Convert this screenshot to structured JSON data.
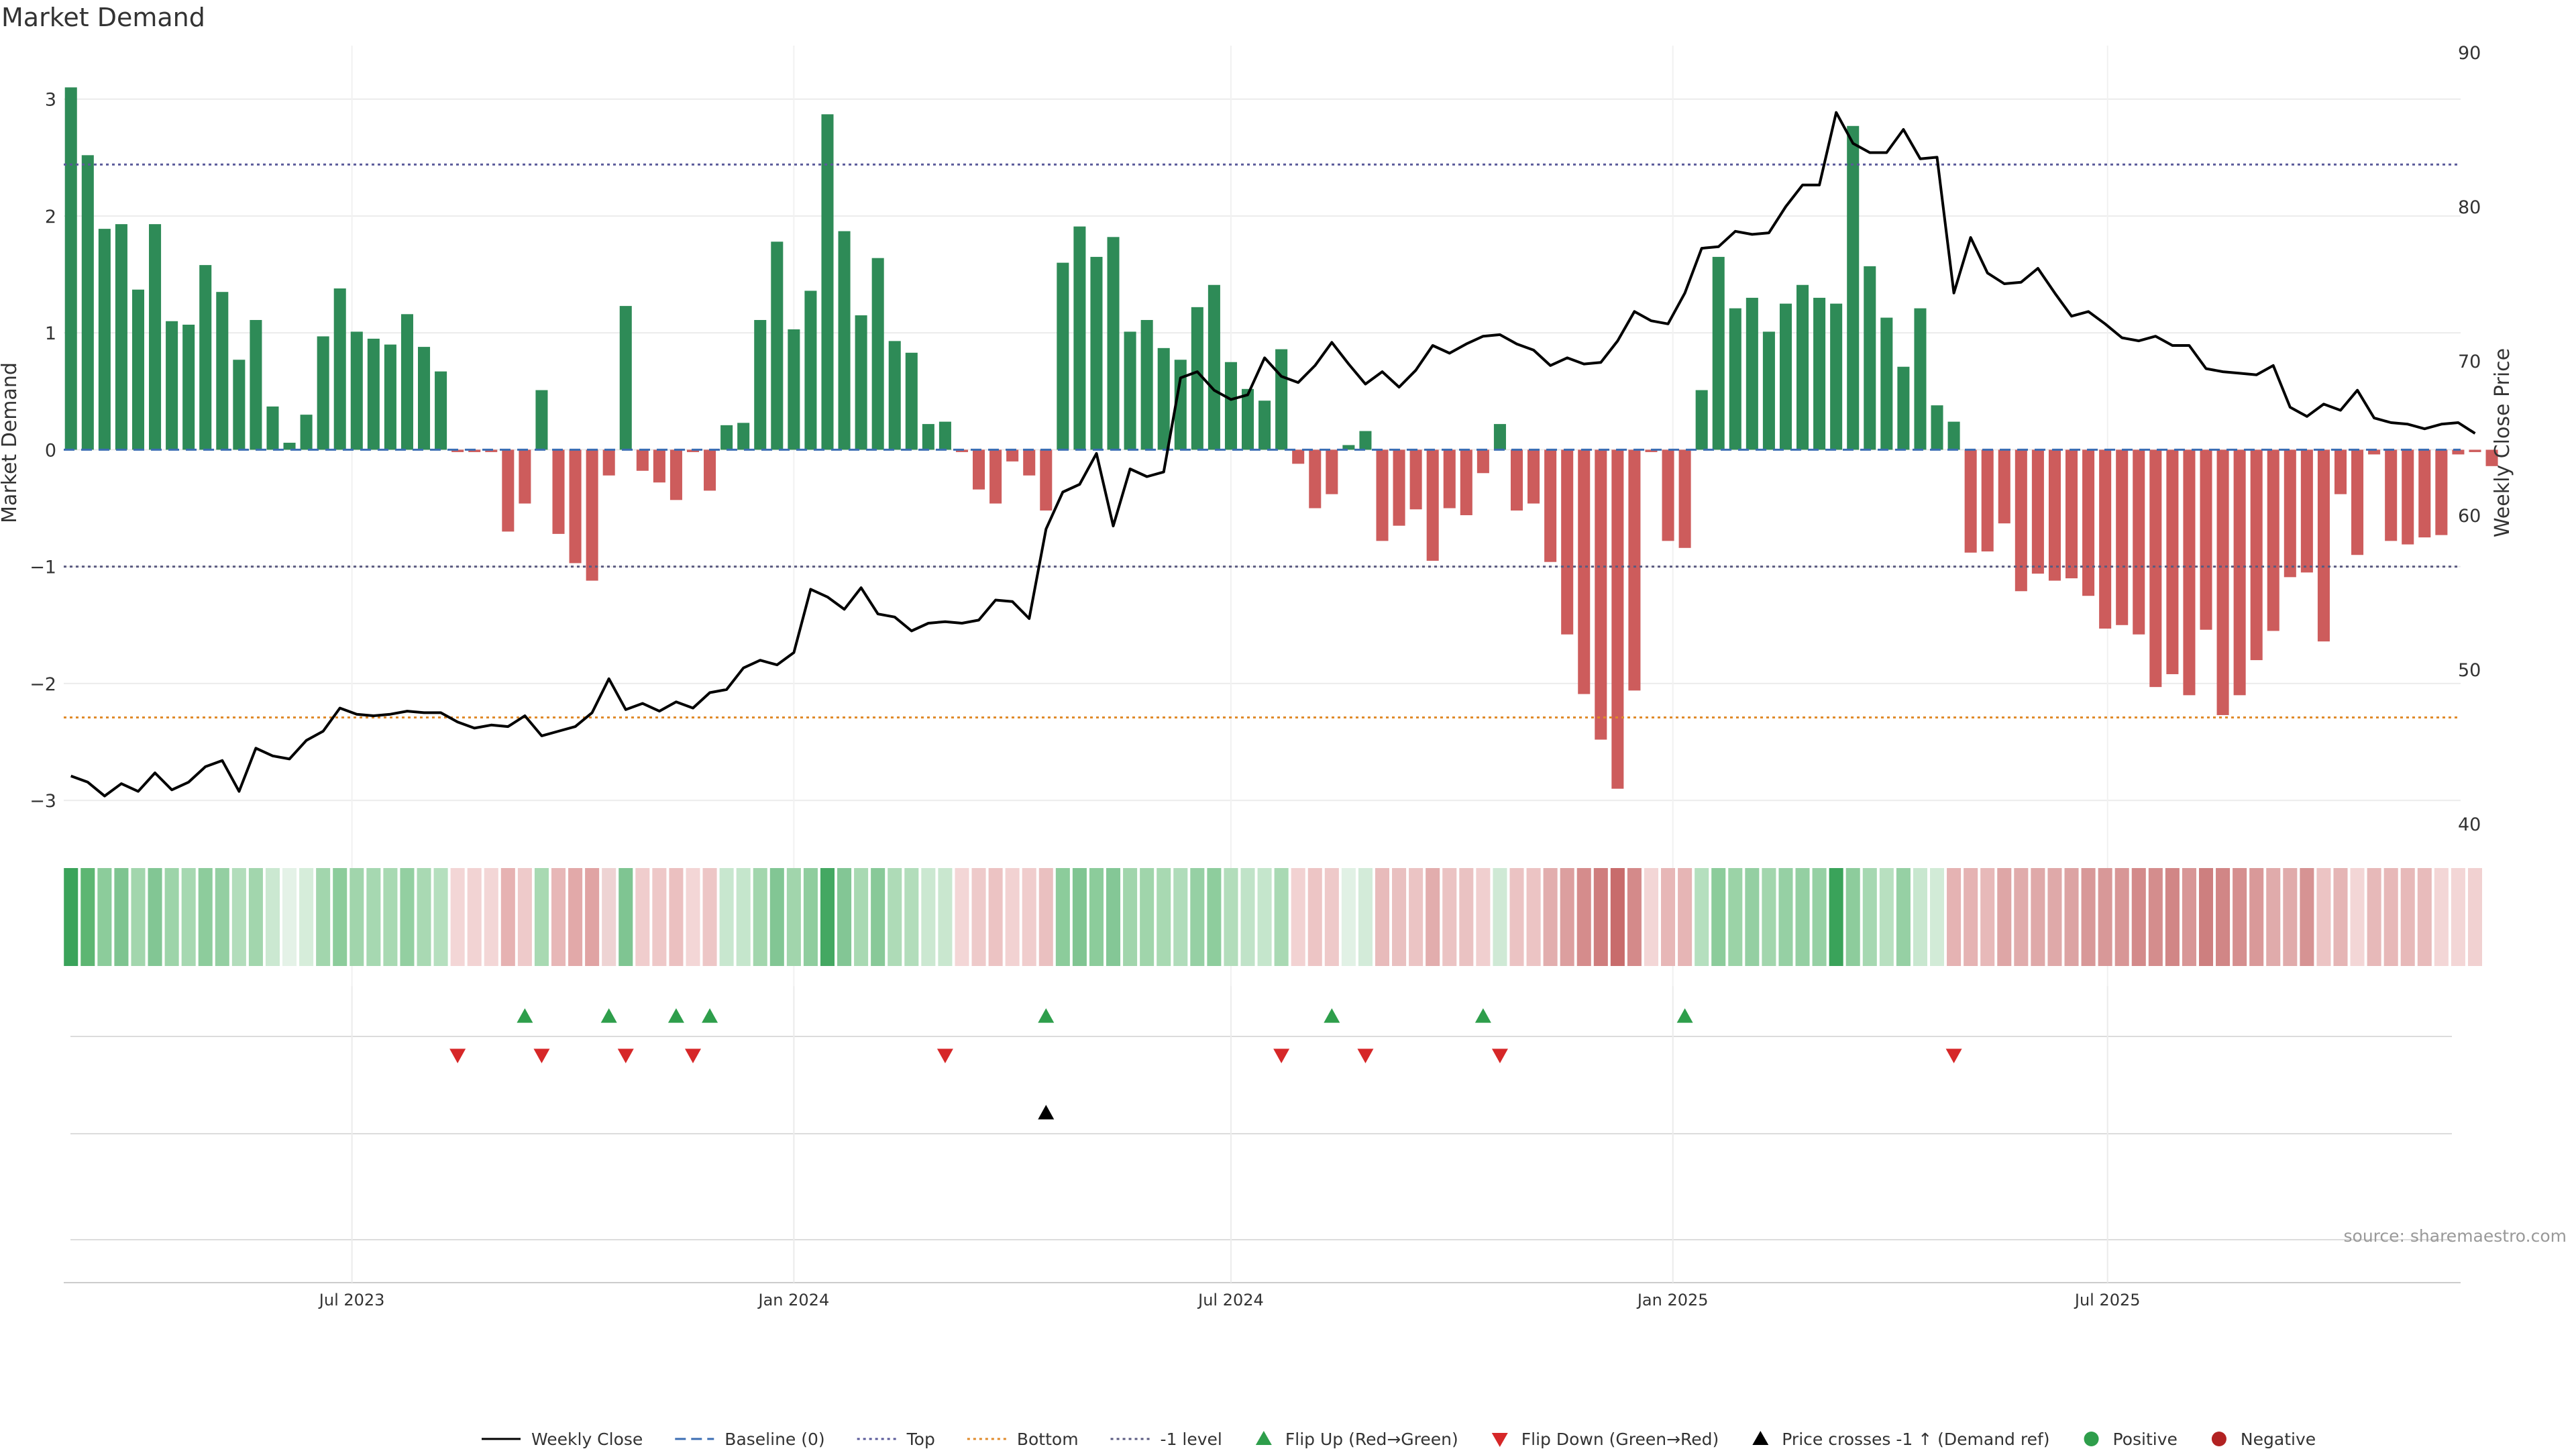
{
  "chart_data": {
    "type": "bar",
    "title": "Market Demand",
    "ylabel_left": "Market Demand",
    "ylabel_right": "Weekly Close Price",
    "ylim_left": [
      -3.2,
      3.4
    ],
    "ylim_right": [
      40,
      90
    ],
    "yticks_left": [
      -3,
      -2,
      -1,
      0,
      1,
      2,
      3
    ],
    "yticks_left_labels": [
      "−3",
      "−2",
      "−1",
      "0",
      "1",
      "2",
      "3"
    ],
    "yticks_right": [
      40,
      50,
      60,
      70,
      80,
      90
    ],
    "x_start": "2023-03-06",
    "x_step_days": 7,
    "x_domain": [
      "2023-03-03",
      "2025-11-25"
    ],
    "xticks": [
      {
        "date": "2023-07-01",
        "label": "Jul 2023"
      },
      {
        "date": "2024-01-01",
        "label": "Jan 2024"
      },
      {
        "date": "2024-07-01",
        "label": "Jul 2024"
      },
      {
        "date": "2025-01-01",
        "label": "Jan 2025"
      },
      {
        "date": "2025-07-01",
        "label": "Jul 2025"
      }
    ],
    "reference_lines": {
      "top": 2.44,
      "bottom": -2.29,
      "minus_one": -1,
      "baseline": 0
    },
    "demand": [
      3.1,
      2.52,
      1.89,
      1.93,
      1.37,
      1.93,
      1.1,
      1.07,
      1.58,
      1.35,
      0.77,
      1.11,
      0.37,
      0.06,
      0.3,
      0.97,
      1.38,
      1.01,
      0.95,
      0.9,
      1.16,
      0.88,
      0.67,
      -0.02,
      -0.02,
      -0.02,
      -0.7,
      -0.46,
      0.51,
      -0.72,
      -0.97,
      -1.12,
      -0.22,
      1.23,
      -0.18,
      -0.28,
      -0.43,
      -0.02,
      -0.35,
      0.21,
      0.23,
      1.11,
      1.78,
      1.03,
      1.36,
      2.87,
      1.87,
      1.15,
      1.64,
      0.93,
      0.83,
      0.22,
      0.24,
      -0.02,
      -0.34,
      -0.46,
      -0.1,
      -0.22,
      -0.52,
      1.6,
      1.91,
      1.65,
      1.82,
      1.01,
      1.11,
      0.87,
      0.77,
      1.22,
      1.41,
      0.75,
      0.52,
      0.42,
      0.86,
      -0.12,
      -0.5,
      -0.38,
      0.04,
      0.16,
      -0.78,
      -0.65,
      -0.51,
      -0.95,
      -0.5,
      -0.56,
      -0.2,
      0.22,
      -0.52,
      -0.46,
      -0.96,
      -1.58,
      -2.09,
      -2.48,
      -2.9,
      -2.06,
      -0.02,
      -0.78,
      -0.84,
      0.51,
      1.65,
      1.21,
      1.3,
      1.01,
      1.25,
      1.41,
      1.3,
      1.25,
      2.77,
      1.57,
      1.13,
      0.71,
      1.21,
      0.38,
      0.24,
      -0.88,
      -0.87,
      -0.63,
      -1.21,
      -1.06,
      -1.12,
      -1.1,
      -1.25,
      -1.53,
      -1.5,
      -1.58,
      -2.03,
      -1.92,
      -2.1,
      -1.54,
      -2.27,
      -2.1,
      -1.8,
      -1.55,
      -1.09,
      -1.05,
      -1.64,
      -0.38,
      -0.9,
      -0.04,
      -0.78,
      -0.81,
      -0.75,
      -0.73,
      -0.04,
      -0.02,
      -0.14
    ],
    "weekly_close": [
      43.1,
      42.7,
      41.8,
      42.6,
      42.1,
      43.3,
      42.2,
      42.7,
      43.7,
      44.1,
      42.1,
      44.9,
      44.4,
      44.2,
      45.4,
      46.0,
      47.5,
      47.1,
      47.0,
      47.1,
      47.3,
      47.2,
      47.2,
      46.6,
      46.2,
      46.4,
      46.3,
      47.0,
      45.7,
      46.0,
      46.3,
      47.2,
      49.4,
      47.4,
      47.8,
      47.3,
      47.9,
      47.5,
      48.5,
      48.7,
      50.1,
      50.6,
      50.3,
      51.1,
      55.2,
      54.7,
      53.9,
      55.3,
      53.6,
      53.4,
      52.5,
      53.0,
      53.1,
      53.0,
      53.2,
      54.5,
      54.4,
      53.3,
      59.1,
      61.5,
      62.0,
      64.0,
      59.3,
      63.0,
      62.5,
      62.8,
      68.9,
      69.3,
      68.1,
      67.5,
      67.8,
      70.2,
      69.0,
      68.6,
      69.7,
      71.2,
      69.8,
      68.5,
      69.3,
      68.3,
      69.4,
      71.0,
      70.5,
      71.1,
      71.6,
      71.7,
      71.1,
      70.7,
      69.7,
      70.2,
      69.8,
      69.9,
      71.3,
      73.2,
      72.6,
      72.4,
      74.4,
      77.3,
      77.4,
      78.4,
      78.2,
      78.3,
      80.0,
      81.4,
      81.4,
      86.1,
      84.1,
      83.5,
      83.5,
      85.0,
      83.1,
      83.2,
      74.4,
      78.0,
      75.7,
      75.0,
      75.1,
      76.0,
      74.4,
      72.9,
      73.2,
      72.4,
      71.5,
      71.3,
      71.6,
      71.0,
      71.0,
      69.5,
      69.3,
      69.2,
      69.1,
      69.7,
      67.0,
      66.4,
      67.2,
      66.8,
      68.1,
      66.3,
      66.0,
      65.9,
      65.6,
      65.9,
      66.0,
      65.3
    ],
    "heat_strip": [
      {
        "color": "#3aa35a"
      },
      {
        "color": "#5db672"
      },
      {
        "color": "#8ccc9b"
      },
      {
        "color": "#7ec490"
      },
      {
        "color": "#a2d6ad"
      },
      {
        "color": "#82c694"
      },
      {
        "color": "#9dd4a9"
      },
      {
        "color": "#a6d8b1"
      },
      {
        "color": "#8dcc9c"
      },
      {
        "color": "#94cfa2"
      },
      {
        "color": "#b2ddbb"
      },
      {
        "color": "#a2d6ad"
      },
      {
        "color": "#cbe8d1"
      },
      {
        "color": "#e4f2e7"
      },
      {
        "color": "#d6edda"
      },
      {
        "color": "#a2d6ad"
      },
      {
        "color": "#8ccc9b"
      },
      {
        "color": "#a1d5ac"
      },
      {
        "color": "#a6d8b1"
      },
      {
        "color": "#a8d9b2"
      },
      {
        "color": "#93cfa1"
      },
      {
        "color": "#a9d9b3"
      },
      {
        "color": "#b5dfbe"
      },
      {
        "color": "#f3d6d6"
      },
      {
        "color": "#f2d3d3"
      },
      {
        "color": "#f3d6d6"
      },
      {
        "color": "#e6b2b2"
      },
      {
        "color": "#eecaca"
      },
      {
        "color": "#a8d9b2"
      },
      {
        "color": "#e7b7b7"
      },
      {
        "color": "#e2a9a9"
      },
      {
        "color": "#e0a3a3"
      },
      {
        "color": "#eed3d3"
      },
      {
        "color": "#7fc592"
      },
      {
        "color": "#f0cdcd"
      },
      {
        "color": "#eec8c8"
      },
      {
        "color": "#ebc0c0"
      },
      {
        "color": "#f3d6d6"
      },
      {
        "color": "#edc6c6"
      },
      {
        "color": "#c8e7cf"
      },
      {
        "color": "#c5e6cc"
      },
      {
        "color": "#a2d6ad"
      },
      {
        "color": "#82c694"
      },
      {
        "color": "#a1d5ac"
      },
      {
        "color": "#8fcd9e"
      },
      {
        "color": "#44a862"
      },
      {
        "color": "#83c695"
      },
      {
        "color": "#a8d9b2"
      },
      {
        "color": "#88c998"
      },
      {
        "color": "#aedbb7"
      },
      {
        "color": "#b2ddbb"
      },
      {
        "color": "#cbe8d1"
      },
      {
        "color": "#c9e7cf"
      },
      {
        "color": "#f3d6d6"
      },
      {
        "color": "#eecaca"
      },
      {
        "color": "#ecc3c3"
      },
      {
        "color": "#f2d2d2"
      },
      {
        "color": "#f0cdcd"
      },
      {
        "color": "#eac0c0"
      },
      {
        "color": "#8ccc9b"
      },
      {
        "color": "#80c592"
      },
      {
        "color": "#8ccc9b"
      },
      {
        "color": "#84c796"
      },
      {
        "color": "#a1d5ac"
      },
      {
        "color": "#a0d5ab"
      },
      {
        "color": "#a8d9b2"
      },
      {
        "color": "#b0dcba"
      },
      {
        "color": "#96d0a4"
      },
      {
        "color": "#8ecd9d"
      },
      {
        "color": "#b2ddbb"
      },
      {
        "color": "#c0e3c8"
      },
      {
        "color": "#c5e6cc"
      },
      {
        "color": "#a9d9b3"
      },
      {
        "color": "#f2d2d2"
      },
      {
        "color": "#edc5c5"
      },
      {
        "color": "#eec9c9"
      },
      {
        "color": "#e1f1e5"
      },
      {
        "color": "#d3ebd9"
      },
      {
        "color": "#e8bbbb"
      },
      {
        "color": "#e9c0c0"
      },
      {
        "color": "#ebc4c4"
      },
      {
        "color": "#e2adad"
      },
      {
        "color": "#ebc3c3"
      },
      {
        "color": "#eac2c2"
      },
      {
        "color": "#f0cfcf"
      },
      {
        "color": "#cfe9d5"
      },
      {
        "color": "#ebc3c3"
      },
      {
        "color": "#ecc4c4"
      },
      {
        "color": "#e2aeae"
      },
      {
        "color": "#dc9f9f"
      },
      {
        "color": "#d58c8c"
      },
      {
        "color": "#cf7d7d"
      },
      {
        "color": "#c86c6c"
      },
      {
        "color": "#d48a8a"
      },
      {
        "color": "#f3d6d6"
      },
      {
        "color": "#e7b7b7"
      },
      {
        "color": "#e6b5b5"
      },
      {
        "color": "#b5dfbe"
      },
      {
        "color": "#8ccc9b"
      },
      {
        "color": "#9bd3a7"
      },
      {
        "color": "#94cfa2"
      },
      {
        "color": "#a2d6ad"
      },
      {
        "color": "#96d0a4"
      },
      {
        "color": "#94cfa2"
      },
      {
        "color": "#96d0a4"
      },
      {
        "color": "#3aa35a"
      },
      {
        "color": "#8dcc9c"
      },
      {
        "color": "#a6d8b1"
      },
      {
        "color": "#b8e0c0"
      },
      {
        "color": "#96d0a4"
      },
      {
        "color": "#c8e7cf"
      },
      {
        "color": "#d2ebd7"
      },
      {
        "color": "#e5b3b3"
      },
      {
        "color": "#e5b3b3"
      },
      {
        "color": "#e7b9b9"
      },
      {
        "color": "#dea6a6"
      },
      {
        "color": "#e0abab"
      },
      {
        "color": "#dfa9a9"
      },
      {
        "color": "#dfa9a9"
      },
      {
        "color": "#dca3a3"
      },
      {
        "color": "#d89898"
      },
      {
        "color": "#d89898"
      },
      {
        "color": "#d89696"
      },
      {
        "color": "#d38a8a"
      },
      {
        "color": "#d48d8d"
      },
      {
        "color": "#d18686"
      },
      {
        "color": "#d89696"
      },
      {
        "color": "#cd7f7f"
      },
      {
        "color": "#d18686"
      },
      {
        "color": "#d58f8f"
      },
      {
        "color": "#d99999"
      },
      {
        "color": "#e0abab"
      },
      {
        "color": "#e0abab"
      },
      {
        "color": "#d69393"
      },
      {
        "color": "#ecc4c4"
      },
      {
        "color": "#e5b5b5"
      },
      {
        "color": "#f3d6d6"
      },
      {
        "color": "#e7b9b9"
      },
      {
        "color": "#e7b8b8"
      },
      {
        "color": "#e7b9b9"
      },
      {
        "color": "#e8bbbb"
      },
      {
        "color": "#f3d6d6"
      },
      {
        "color": "#f3d6d6"
      },
      {
        "color": "#f1d1d1"
      }
    ],
    "flip_up_indices": [
      27,
      32,
      36,
      38,
      58,
      75,
      84,
      96
    ],
    "flip_down_indices": [
      23,
      28,
      33,
      37,
      52,
      72,
      77,
      85,
      112
    ],
    "price_cross_indices": [
      58
    ],
    "source": "source: sharemaestro.com",
    "legend": [
      {
        "kind": "line-solid",
        "color": "#000000",
        "label": "Weekly Close"
      },
      {
        "kind": "line-dash",
        "color": "#3b6db3",
        "label": "Baseline (0)"
      },
      {
        "kind": "line-dot",
        "color": "#5a5a9a",
        "label": "Top"
      },
      {
        "kind": "line-dot",
        "color": "#e08a2a",
        "label": "Bottom"
      },
      {
        "kind": "line-dot",
        "color": "#5a5a80",
        "label": "-1 level"
      },
      {
        "kind": "tri-up",
        "color": "#2e9e4b",
        "label": "Flip Up (Red→Green)"
      },
      {
        "kind": "tri-down",
        "color": "#d62728",
        "label": "Flip Down (Green→Red)"
      },
      {
        "kind": "tri-up",
        "color": "#000000",
        "label": "Price crosses -1 ↑ (Demand ref)"
      },
      {
        "kind": "dot",
        "color": "#2e9e4b",
        "label": "Positive"
      },
      {
        "kind": "dot",
        "color": "#b22222",
        "label": "Negative"
      }
    ],
    "colors": {
      "positive_bar": "#2e8b57",
      "negative_bar": "#cd5c5c",
      "price_line": "#000000",
      "top_line": "#5a5a9a",
      "bottom_line": "#e08a2a",
      "minus_one_line": "#5a5a80",
      "baseline": "#3b6db3",
      "flip_up": "#2e9e4b",
      "flip_down": "#d62728",
      "price_cross": "#000000"
    }
  }
}
